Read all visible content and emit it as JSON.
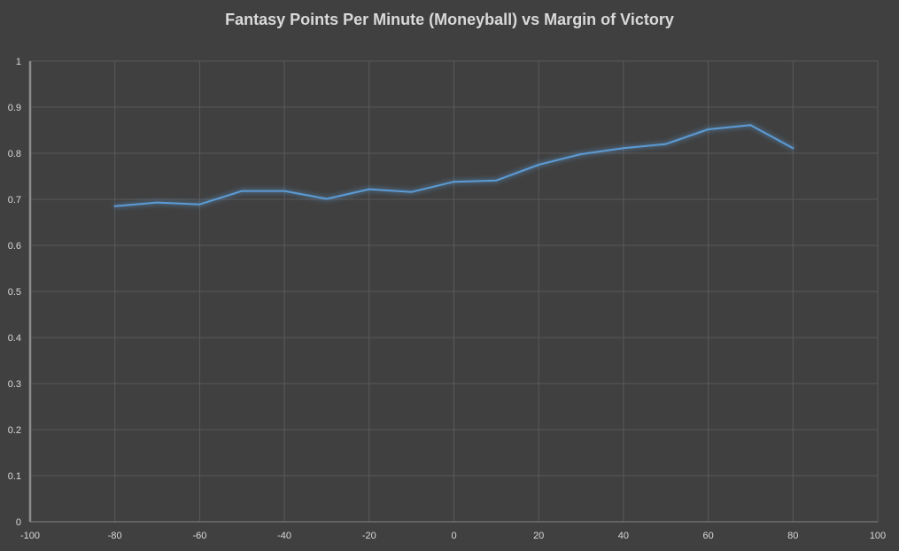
{
  "chart_data": {
    "type": "scatter",
    "title": "Fantasy Points Per Minute (Moneyball) vs Margin of Victory",
    "xlabel": "",
    "ylabel": "",
    "xlim": [
      -100,
      100
    ],
    "ylim": [
      0,
      1
    ],
    "x_ticks": [
      -100,
      -80,
      -60,
      -40,
      -20,
      0,
      20,
      40,
      60,
      80,
      100
    ],
    "y_ticks": [
      0,
      0.1,
      0.2,
      0.3,
      0.4,
      0.5,
      0.6,
      0.7,
      0.8,
      0.9,
      1
    ],
    "grid": true,
    "legend": "none",
    "line_style": "straight lines, no markers",
    "colors": {
      "background": "#404040",
      "grid": "#595959",
      "text": "#d9d9d9",
      "series": "#5b9bd5"
    },
    "series": [
      {
        "x": [
          -80,
          -70,
          -60,
          -50,
          -40,
          -30,
          -20,
          -10,
          0,
          10,
          20,
          30,
          40,
          50,
          60,
          70,
          80
        ],
        "y": [
          0.685,
          0.693,
          0.689,
          0.718,
          0.718,
          0.701,
          0.722,
          0.716,
          0.738,
          0.741,
          0.775,
          0.798,
          0.811,
          0.82,
          0.852,
          0.861,
          0.811
        ]
      }
    ]
  }
}
